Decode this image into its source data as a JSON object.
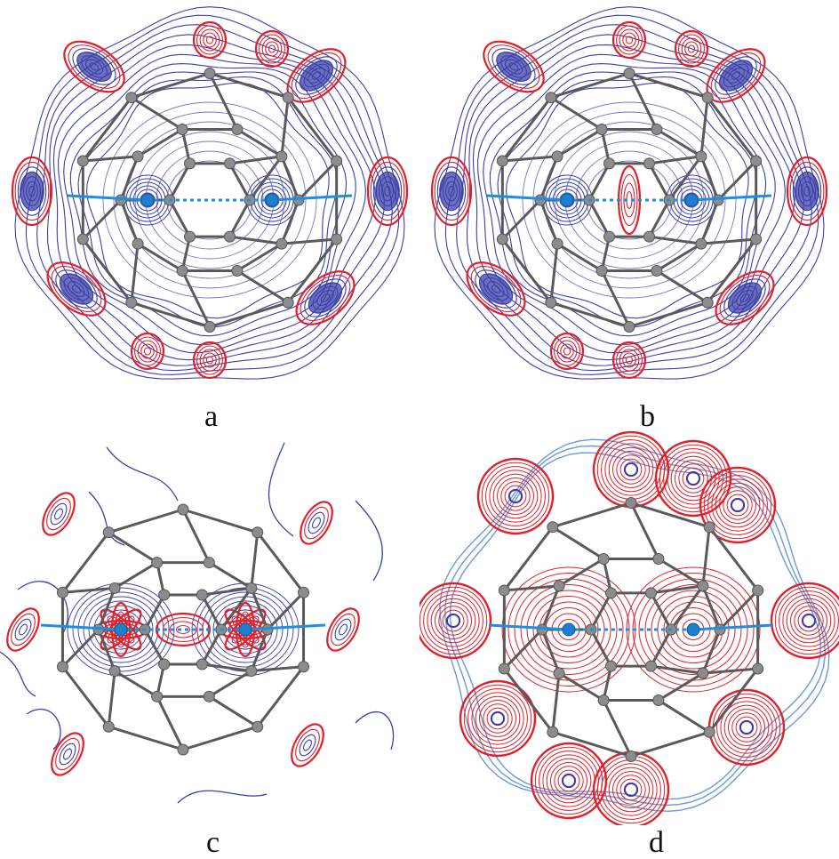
{
  "panels": [
    {
      "id": "a",
      "label": "a",
      "style": "contour-blue-outer"
    },
    {
      "id": "b",
      "label": "b",
      "style": "contour-blue-outer-central"
    },
    {
      "id": "c",
      "label": "c",
      "style": "difference-density"
    },
    {
      "id": "d",
      "label": "d",
      "style": "red-filled"
    }
  ],
  "colors": {
    "positive_contour": "#3b3fa8",
    "negative_contour": "#e0202a",
    "light_contour": "#6a9bd6",
    "bond": "#5a5a5a",
    "atom": "#8c8c8c",
    "metal_atom": "#1e7fd0",
    "metal_bond": "#1e8fe0"
  }
}
